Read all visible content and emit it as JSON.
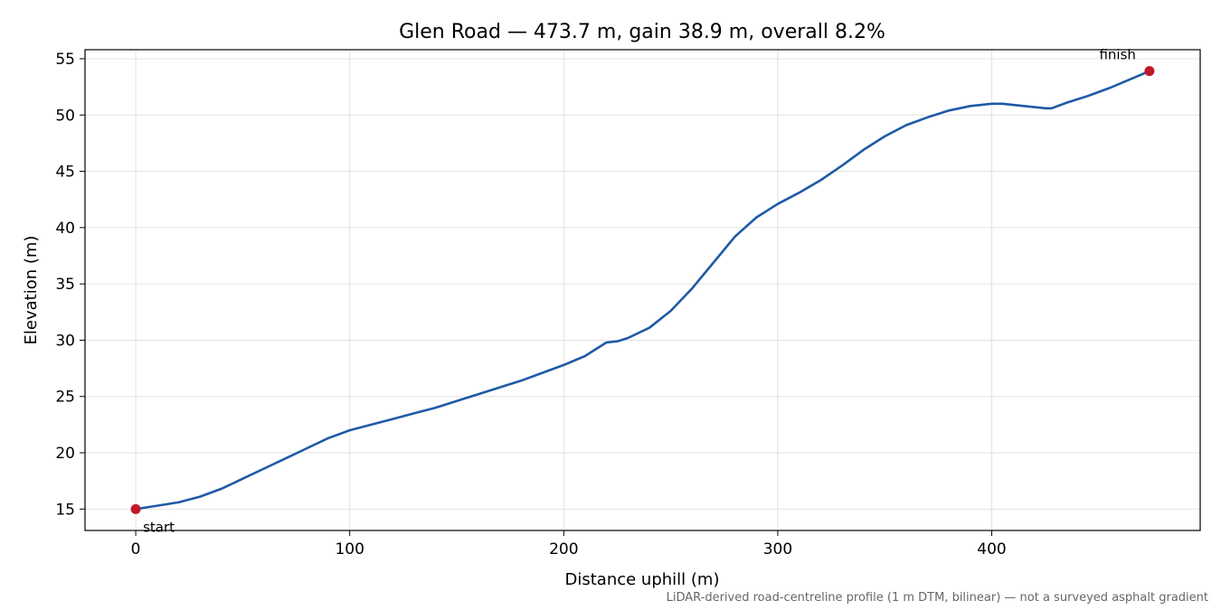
{
  "chart_data": {
    "type": "line",
    "title": "Glen Road — 473.7 m, gain 38.9 m, overall 8.2%",
    "xlabel": "Distance uphill (m)",
    "ylabel": "Elevation (m)",
    "footnote": "LiDAR-derived road-centreline profile (1 m DTM, bilinear) — not a surveyed asphalt gradient",
    "xlim": [
      -23.7,
      497.4
    ],
    "ylim": [
      13.1,
      55.8
    ],
    "xticks": [
      0,
      100,
      200,
      300,
      400
    ],
    "yticks": [
      15,
      20,
      25,
      30,
      35,
      40,
      45,
      50,
      55
    ],
    "grid": true,
    "line_color": "#1f5aa6",
    "marker_color": "#c0182a",
    "series": [
      {
        "x": [
          0,
          10,
          20,
          30,
          40,
          50,
          60,
          70,
          80,
          90,
          100,
          110,
          120,
          130,
          140,
          150,
          160,
          170,
          180,
          190,
          200,
          210,
          215,
          220,
          225,
          230,
          240,
          250,
          260,
          270,
          280,
          290,
          300,
          310,
          320,
          330,
          340,
          350,
          360,
          370,
          380,
          390,
          400,
          405,
          415,
          425,
          428,
          435,
          445,
          455,
          465,
          473.7
        ],
        "y": [
          15.0,
          15.3,
          15.6,
          16.1,
          16.8,
          17.7,
          18.6,
          19.5,
          20.4,
          21.3,
          22.0,
          22.5,
          23.0,
          23.5,
          24.0,
          24.6,
          25.2,
          25.8,
          26.4,
          27.1,
          27.8,
          28.6,
          29.2,
          29.8,
          29.9,
          30.2,
          31.1,
          32.6,
          34.6,
          36.9,
          39.2,
          40.9,
          42.1,
          43.1,
          44.2,
          45.5,
          46.9,
          48.1,
          49.1,
          49.8,
          50.4,
          50.8,
          51.0,
          51.0,
          50.8,
          50.6,
          50.6,
          51.1,
          51.7,
          52.4,
          53.2,
          53.9
        ]
      }
    ],
    "annotations": [
      {
        "text": "start",
        "x": 0,
        "y": 15.0
      },
      {
        "text": "finish",
        "x": 473.7,
        "y": 53.9
      }
    ]
  }
}
